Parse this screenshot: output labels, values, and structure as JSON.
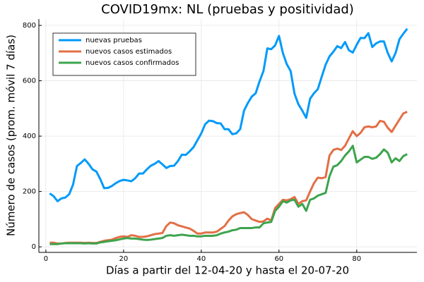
{
  "chart_data": {
    "type": "line",
    "title": "COVID19mx: NL (pruebas y positividad)",
    "xlabel": "Días a partir del 12-04-20 y hasta el 20-07-20",
    "ylabel": "Número de casos (prom. móvil 7 días)",
    "x": [
      1,
      2,
      3,
      4,
      5,
      6,
      7,
      8,
      9,
      10,
      11,
      12,
      13,
      14,
      15,
      16,
      17,
      18,
      19,
      20,
      21,
      22,
      23,
      24,
      25,
      26,
      27,
      28,
      29,
      30,
      31,
      32,
      33,
      34,
      35,
      36,
      37,
      38,
      39,
      40,
      41,
      42,
      43,
      44,
      45,
      46,
      47,
      48,
      49,
      50,
      51,
      52,
      53,
      54,
      55,
      56,
      57,
      58,
      59,
      60,
      61,
      62,
      63,
      64,
      65,
      66,
      67,
      68,
      69,
      70,
      71,
      72,
      73,
      74,
      75,
      76,
      77,
      78,
      79,
      80,
      81,
      82,
      83,
      84,
      85,
      86,
      87,
      88,
      89,
      90,
      91,
      92,
      93
    ],
    "series": [
      {
        "name": "nuevas pruebas",
        "color": "#009af9",
        "values": [
          193,
          183,
          165,
          175,
          178,
          190,
          225,
          292,
          303,
          316,
          300,
          280,
          272,
          245,
          212,
          213,
          220,
          230,
          238,
          242,
          240,
          237,
          248,
          265,
          265,
          280,
          293,
          300,
          310,
          298,
          285,
          292,
          293,
          310,
          333,
          332,
          345,
          360,
          385,
          410,
          443,
          456,
          454,
          447,
          446,
          425,
          425,
          407,
          410,
          425,
          492,
          520,
          543,
          555,
          598,
          635,
          717,
          714,
          728,
          762,
          700,
          660,
          635,
          553,
          515,
          492,
          466,
          535,
          555,
          570,
          615,
          658,
          688,
          705,
          725,
          718,
          740,
          710,
          702,
          730,
          755,
          754,
          772,
          722,
          735,
          742,
          742,
          700,
          670,
          700,
          750,
          770,
          788
        ]
      },
      {
        "name": "nuevos casos estimados",
        "color": "#e26f46",
        "values": [
          15,
          15,
          12,
          12,
          14,
          15,
          15,
          15,
          15,
          14,
          15,
          14,
          14,
          18,
          22,
          24,
          26,
          32,
          36,
          38,
          36,
          42,
          40,
          36,
          36,
          38,
          42,
          46,
          48,
          50,
          75,
          88,
          85,
          78,
          74,
          70,
          66,
          58,
          48,
          48,
          52,
          52,
          52,
          55,
          65,
          75,
          95,
          110,
          118,
          122,
          125,
          115,
          100,
          95,
          90,
          92,
          102,
          95,
          140,
          155,
          170,
          168,
          172,
          180,
          155,
          165,
          168,
          200,
          230,
          250,
          248,
          252,
          330,
          350,
          355,
          350,
          365,
          392,
          418,
          400,
          412,
          432,
          435,
          432,
          435,
          455,
          452,
          430,
          415,
          438,
          460,
          482,
          488
        ]
      },
      {
        "name": "nuevos casos confirmados",
        "color": "#3da44d",
        "values": [
          10,
          10,
          10,
          12,
          13,
          13,
          13,
          13,
          13,
          12,
          13,
          12,
          12,
          16,
          18,
          20,
          22,
          24,
          27,
          30,
          32,
          30,
          30,
          28,
          26,
          25,
          26,
          28,
          30,
          32,
          40,
          42,
          40,
          42,
          44,
          42,
          40,
          40,
          38,
          38,
          40,
          40,
          40,
          42,
          48,
          52,
          55,
          60,
          62,
          68,
          68,
          68,
          68,
          70,
          70,
          85,
          88,
          90,
          130,
          145,
          165,
          160,
          168,
          170,
          145,
          155,
          130,
          170,
          175,
          185,
          190,
          195,
          255,
          290,
          295,
          310,
          330,
          345,
          365,
          305,
          315,
          325,
          325,
          318,
          322,
          335,
          352,
          340,
          305,
          320,
          310,
          328,
          335
        ]
      }
    ],
    "xlim": [
      -1.8,
      95.5
    ],
    "xticks": [
      0,
      20,
      40,
      60,
      80
    ],
    "ylim": [
      -20,
      823
    ],
    "yticks": [
      0,
      200,
      400,
      600,
      800
    ],
    "grid": true,
    "legend": "top-left"
  }
}
